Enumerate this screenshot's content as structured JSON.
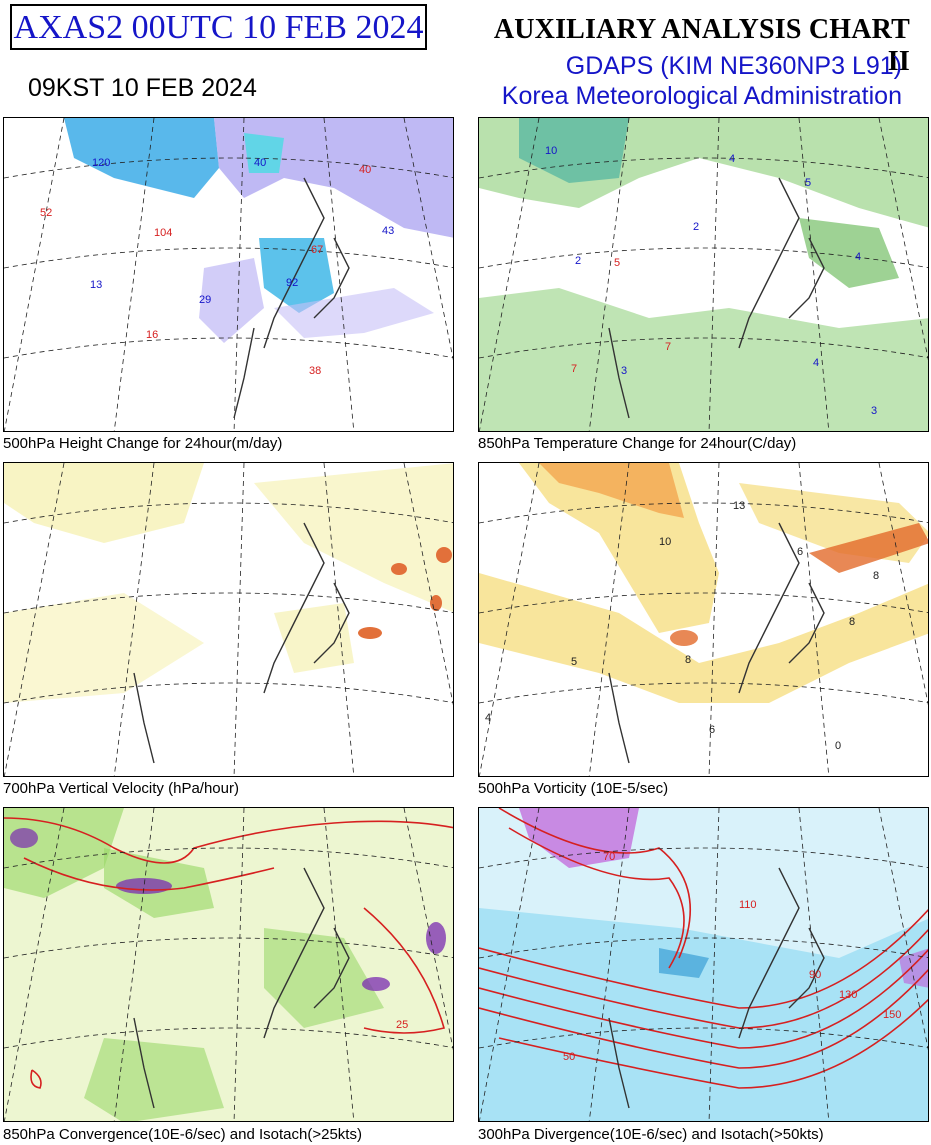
{
  "header": {
    "code": "AXAS2  00UTC 10 FEB 2024",
    "kst": "09KST 10 FEB 2024",
    "title": "AUXILIARY ANALYSIS CHART II",
    "model": "GDAPS (KIM NE360NP3 L91)",
    "agency": "Korea Meteorological Administration"
  },
  "panels": [
    {
      "caption": "500hPa Height Change for 24hour(m/day)",
      "shading": "blue-purple",
      "labels": [
        "120",
        "52",
        "104",
        "13",
        "29",
        "16",
        "92",
        "38",
        "40",
        "43",
        "67",
        "40"
      ]
    },
    {
      "caption": "850hPa Temperature Change for 24hour(C/day)",
      "shading": "green",
      "labels": [
        "10",
        "4",
        "5",
        "2",
        "2",
        "5",
        "7",
        "3",
        "4",
        "4",
        "7",
        "3"
      ]
    },
    {
      "caption": "700hPa Vertical Velocity (hPa/hour)",
      "shading": "yellow",
      "labels": []
    },
    {
      "caption": "500hPa Vorticity (10E-5/sec)",
      "shading": "orange",
      "labels": [
        "10",
        "13",
        "5",
        "6",
        "8",
        "8",
        "4",
        "6",
        "0",
        "8"
      ]
    },
    {
      "caption": "850hPa Convergence(10E-6/sec) and Isotach(>25kts)",
      "shading": "green-multicolor",
      "labels": [
        "25"
      ]
    },
    {
      "caption": "300hPa Divergence(10E-6/sec) and Isotach(>50kts)",
      "shading": "cyan",
      "labels": [
        "50",
        "70",
        "110",
        "90",
        "130",
        "150"
      ]
    }
  ],
  "colors": {
    "blue_text": "#1515c8",
    "height_fall": "#2fa6e6",
    "height_rise": "#a9a2f0",
    "temp_change": "#7fc96a",
    "vertical_velocity": "#f3ed9c",
    "vorticity": "#f3a24b",
    "convergence": "#9bd86a",
    "divergence": "#7fd6f0",
    "isotach": "#d62020"
  }
}
